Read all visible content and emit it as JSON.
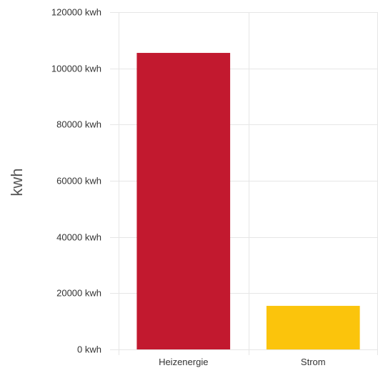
{
  "chart_data": {
    "type": "bar",
    "title": "",
    "xlabel": "",
    "ylabel": "kwh",
    "categories": [
      "Heizenergie",
      "Strom"
    ],
    "values": [
      105500,
      15500
    ],
    "colors": [
      "#c2192f",
      "#fbc40c"
    ],
    "ylim": [
      0,
      120000
    ],
    "yticks": [
      0,
      20000,
      40000,
      60000,
      80000,
      100000,
      120000
    ],
    "ytick_labels": [
      "0 kwh",
      "20000 kwh",
      "40000 kwh",
      "60000 kwh",
      "80000 kwh",
      "100000 kwh",
      "120000 kwh"
    ],
    "grid": true,
    "legend": "none"
  }
}
